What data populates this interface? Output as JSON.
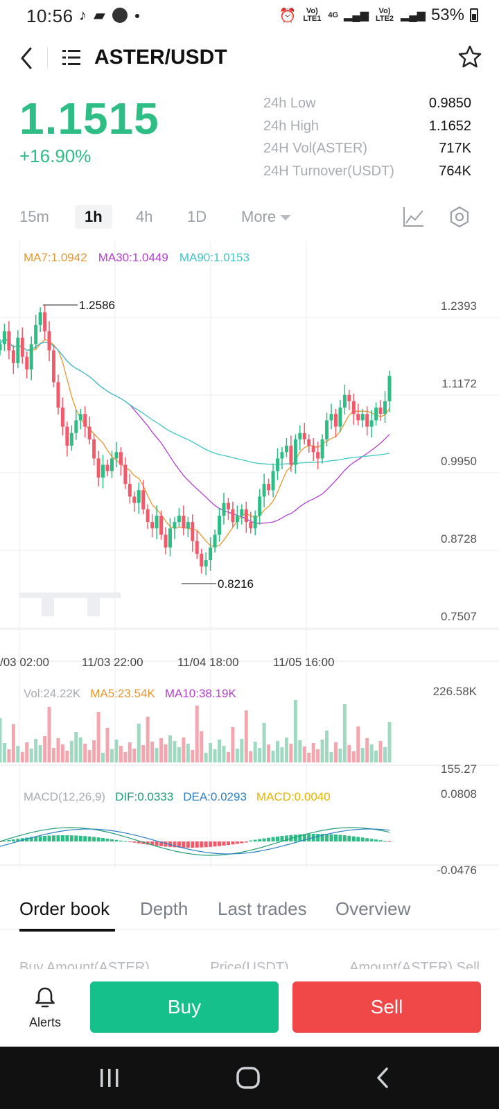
{
  "status": {
    "time": "10:56",
    "lte1": "Vo) LTE1",
    "net4g": "4G",
    "lte2": "Vo) LTE2",
    "battery": "53%"
  },
  "header": {
    "title": "ASTER/USDT"
  },
  "ticker": {
    "price": "1.1515",
    "change": "+16.90%",
    "stats": [
      {
        "label": "24h Low",
        "value": "0.9850"
      },
      {
        "label": "24h High",
        "value": "1.1652"
      },
      {
        "label": "24H Vol(ASTER)",
        "value": "717K"
      },
      {
        "label": "24H Turnover(USDT)",
        "value": "764K"
      }
    ]
  },
  "timeframes": {
    "m15": "15m",
    "h1": "1h",
    "h4": "4h",
    "d1": "1D",
    "more": "More"
  },
  "chart": {
    "ma7": "MA7:1.0942",
    "ma30": "MA30:1.0449",
    "ma90": "MA90:1.0153",
    "high_marker": "1.2586",
    "low_marker": "0.8216",
    "y_labels": [
      "1.2393",
      "1.1172",
      "0.9950",
      "0.8728",
      "0.7507"
    ],
    "x_labels": [
      "/03 02:00",
      "11/03 22:00",
      "11/04 18:00",
      "11/05 16:00"
    ],
    "vol": "Vol:24.22K",
    "ma5": "MA5:23.54K",
    "ma10": "MA10:38.19K",
    "vol_top": "226.58K",
    "vol_bottom": "155.27",
    "macd_params": "MACD(12,26,9)",
    "dif": "DIF:0.0333",
    "dea": "DEA:0.0293",
    "macd": "MACD:0.0040",
    "macd_top": "0.0808",
    "macd_bottom": "-0.0476",
    "colors": {
      "up": "#2ebd85",
      "down": "#f05a6a",
      "ma7": "#e8962e",
      "ma30": "#b23fcf",
      "ma90": "#3ec7c4"
    }
  },
  "tabs": {
    "order_book": "Order book",
    "depth": "Depth",
    "last_trades": "Last trades",
    "overview": "Overview"
  },
  "orderbook_header": {
    "buy": "Buy Amount(ASTER)",
    "price": "Price(USDT)",
    "sell": "Amount(ASTER) Sell"
  },
  "actions": {
    "alerts": "Alerts",
    "buy": "Buy",
    "sell": "Sell"
  }
}
